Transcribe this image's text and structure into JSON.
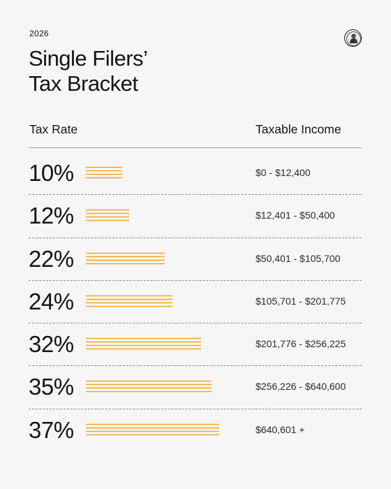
{
  "header": {
    "year": "2026",
    "title_line1": "Single Filers’",
    "title_line2": "Tax Bracket",
    "logo_icon": "portrait-seal-icon"
  },
  "columns": {
    "rate": "Tax Rate",
    "income": "Taxable Income"
  },
  "colors": {
    "background": "#f6f6f6",
    "bar": "#f2a71b",
    "text": "#141414"
  },
  "chart_data": {
    "type": "bar",
    "categories": [
      "10%",
      "12%",
      "22%",
      "24%",
      "32%",
      "35%",
      "37%"
    ],
    "values": [
      10,
      12,
      22,
      24,
      32,
      35,
      37
    ],
    "income_ranges": [
      "$0 - $12,400",
      "$12,401 - $50,400",
      "$50,401 - $105,700",
      "$105,701 - $201,775",
      "$201,776 - $256,225",
      "$256,226 - $640,600",
      "$640,601 +"
    ],
    "title": "Single Filers’ Tax Bracket",
    "xlabel": "Tax Rate",
    "ylabel": "Taxable Income",
    "orientation": "horizontal",
    "grid": false
  }
}
